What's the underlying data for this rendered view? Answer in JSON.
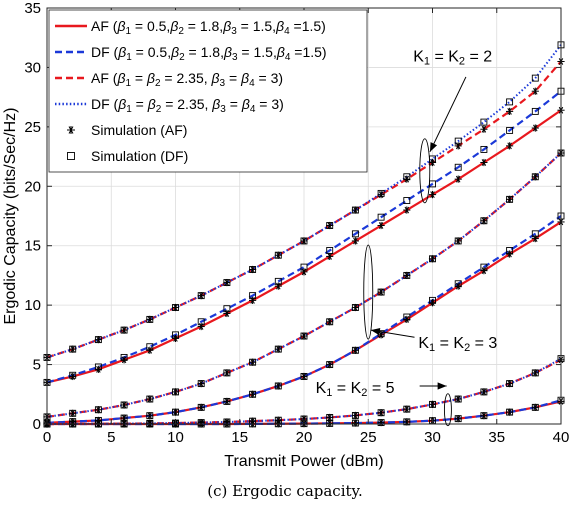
{
  "chart_data": {
    "type": "line",
    "xlabel": "Transmit Power (dBm)",
    "ylabel": "Ergodic Capacity (bits/Sec/Hz)",
    "xlim": [
      0,
      40
    ],
    "ylim": [
      0,
      35
    ],
    "xticks": [
      0,
      5,
      10,
      15,
      20,
      25,
      30,
      35,
      40
    ],
    "yticks": [
      0,
      5,
      10,
      15,
      20,
      25,
      30,
      35
    ],
    "grid": true,
    "legend_position": "top-left",
    "x": [
      0,
      2,
      4,
      6,
      8,
      10,
      12,
      14,
      16,
      18,
      20,
      22,
      24,
      26,
      28,
      30,
      32,
      34,
      36,
      38,
      40
    ],
    "legend": [
      {
        "key": "af1",
        "label": "AF (β1 = 0.5,β2 = 1.8,β3 = 1.5,β4 =1.5)",
        "color": "#e8181e",
        "style": "solid"
      },
      {
        "key": "df1",
        "label": "DF (β1 = 0.5,β2 = 1.8,β3 = 1.5,β4 =1.5)",
        "color": "#1b39d8",
        "style": "dashed"
      },
      {
        "key": "af2",
        "label": "AF (β1 = β2 = 2.35, β3 = β4 = 3)",
        "color": "#e8181e",
        "style": "dashed"
      },
      {
        "key": "df2",
        "label": "DF (β1 = β2 = 2.35, β3 = β4 = 3)",
        "color": "#1b39d8",
        "style": "dotted"
      },
      {
        "key": "simaf",
        "label": "Simulation (AF)",
        "color": "#000000",
        "style": "asterisk"
      },
      {
        "key": "simdf",
        "label": "Simulation (DF)",
        "color": "#000000",
        "style": "square"
      }
    ],
    "groups": [
      {
        "label": "K1 = K2 = 2",
        "series": [
          {
            "name": "AF (β1 = 0.5,β2 = 1.8,β3 = 1.5,β4 =1.5)",
            "values": [
              3.5,
              4.0,
              4.6,
              5.4,
              6.2,
              7.2,
              8.2,
              9.3,
              10.4,
              11.6,
              12.8,
              14.1,
              15.4,
              16.7,
              18.0,
              19.3,
              20.6,
              22.0,
              23.4,
              24.9,
              26.4
            ]
          },
          {
            "name": "DF (β1 = 0.5,β2 = 1.8,β3 = 1.5,β4 =1.5)",
            "values": [
              3.5,
              4.1,
              4.8,
              5.6,
              6.5,
              7.5,
              8.6,
              9.7,
              10.8,
              12.0,
              13.2,
              14.6,
              16.0,
              17.4,
              18.8,
              20.2,
              21.6,
              23.1,
              24.7,
              26.3,
              28.0
            ]
          },
          {
            "name": "AF (β1 = β2 = 2.35, β3 = β4 = 3)",
            "values": [
              5.6,
              6.3,
              7.1,
              7.9,
              8.8,
              9.8,
              10.8,
              11.9,
              13.0,
              14.2,
              15.4,
              16.7,
              18.0,
              19.3,
              20.6,
              22.0,
              23.4,
              24.8,
              26.3,
              28.0,
              30.5
            ]
          },
          {
            "name": "DF (β1 = β2 = 2.35, β3 = β4 = 3)",
            "values": [
              5.6,
              6.3,
              7.1,
              7.9,
              8.8,
              9.8,
              10.8,
              11.9,
              13.0,
              14.2,
              15.4,
              16.7,
              18.0,
              19.4,
              20.8,
              22.3,
              23.8,
              25.4,
              27.1,
              29.1,
              31.9
            ]
          }
        ]
      },
      {
        "label": "K1 = K2 = 3",
        "series": [
          {
            "name": "AF (β1 = 0.5,β2 = 1.8,β3 = 1.5,β4 =1.5)",
            "values": [
              0.1,
              0.2,
              0.3,
              0.5,
              0.7,
              1.0,
              1.4,
              1.9,
              2.5,
              3.2,
              4.0,
              5.0,
              6.2,
              7.5,
              8.8,
              10.2,
              11.6,
              12.9,
              14.3,
              15.6,
              17.0
            ]
          },
          {
            "name": "DF (β1 = 0.5,β2 = 1.8,β3 = 1.5,β4 =1.5)",
            "values": [
              0.1,
              0.2,
              0.3,
              0.5,
              0.7,
              1.0,
              1.4,
              1.9,
              2.5,
              3.2,
              4.0,
              5.0,
              6.2,
              7.6,
              9.0,
              10.4,
              11.8,
              13.2,
              14.6,
              16.0,
              17.5
            ]
          },
          {
            "name": "AF (β1 = β2 = 2.35, β3 = β4 = 3)",
            "values": [
              0.6,
              0.9,
              1.2,
              1.6,
              2.1,
              2.7,
              3.4,
              4.3,
              5.2,
              6.3,
              7.4,
              8.6,
              9.8,
              11.1,
              12.5,
              13.9,
              15.4,
              17.1,
              18.9,
              20.8,
              22.8
            ]
          },
          {
            "name": "DF (β1 = β2 = 2.35, β3 = β4 = 3)",
            "values": [
              0.6,
              0.9,
              1.2,
              1.6,
              2.1,
              2.7,
              3.4,
              4.3,
              5.2,
              6.3,
              7.4,
              8.6,
              9.8,
              11.1,
              12.5,
              13.9,
              15.4,
              17.1,
              18.9,
              20.8,
              22.8
            ]
          }
        ]
      },
      {
        "label": "K1 = K2 = 5",
        "series": [
          {
            "name": "AF (β1 = 0.5,β2 = 1.8,β3 = 1.5,β4 =1.5)",
            "values": [
              0.0,
              0.0,
              0.0,
              0.0,
              0.0,
              0.0,
              0.0,
              0.0,
              0.01,
              0.02,
              0.03,
              0.05,
              0.08,
              0.12,
              0.18,
              0.28,
              0.45,
              0.7,
              1.0,
              1.4,
              1.9
            ]
          },
          {
            "name": "DF (β1 = 0.5,β2 = 1.8,β3 = 1.5,β4 =1.5)",
            "values": [
              0.0,
              0.0,
              0.0,
              0.0,
              0.0,
              0.0,
              0.0,
              0.0,
              0.01,
              0.02,
              0.03,
              0.05,
              0.08,
              0.12,
              0.18,
              0.28,
              0.45,
              0.7,
              1.0,
              1.4,
              2.0
            ]
          },
          {
            "name": "AF (β1 = β2 = 2.35, β3 = β4 = 3)",
            "values": [
              0.0,
              0.01,
              0.02,
              0.03,
              0.05,
              0.08,
              0.12,
              0.17,
              0.24,
              0.32,
              0.42,
              0.55,
              0.72,
              0.95,
              1.25,
              1.65,
              2.1,
              2.7,
              3.4,
              4.3,
              5.4
            ]
          },
          {
            "name": "DF (β1 = β2 = 2.35, β3 = β4 = 3)",
            "values": [
              0.0,
              0.01,
              0.02,
              0.03,
              0.05,
              0.08,
              0.12,
              0.17,
              0.24,
              0.32,
              0.42,
              0.55,
              0.72,
              0.95,
              1.25,
              1.65,
              2.1,
              2.7,
              3.4,
              4.3,
              5.5
            ]
          }
        ]
      }
    ]
  },
  "caption": "(c) Ergodic capacity."
}
